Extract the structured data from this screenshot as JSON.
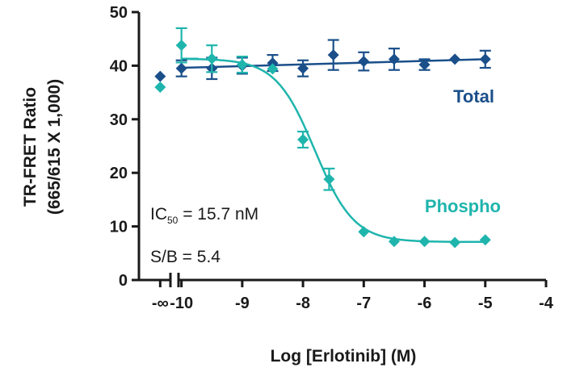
{
  "chart_data": {
    "type": "scatter",
    "xlabel": "Log [Erlotinib] (M)",
    "ylabel_line1": "TR-FRET Ratio",
    "ylabel_line2": "(665/615 X 1,000)",
    "xlim": [
      -10.7,
      -4
    ],
    "ylim": [
      0,
      50
    ],
    "xticks": [
      {
        "value": -10,
        "label": "-10"
      },
      {
        "value": -9,
        "label": "-9"
      },
      {
        "value": -8,
        "label": "-8"
      },
      {
        "value": -7,
        "label": "-7"
      },
      {
        "value": -6,
        "label": "-6"
      },
      {
        "value": -5,
        "label": "-5"
      },
      {
        "value": -4,
        "label": "-4"
      }
    ],
    "xtick_zero": {
      "value": -10.35,
      "label": "-∞"
    },
    "yticks": [
      0,
      10,
      20,
      30,
      40,
      50
    ],
    "axis_break": true,
    "series": [
      {
        "name": "Total",
        "color": "#1a4f8a",
        "zero_dose": {
          "y": 38.0,
          "err": 0
        },
        "points": [
          {
            "x": -10.0,
            "y": 39.5,
            "err": 1.5
          },
          {
            "x": -9.5,
            "y": 39.5,
            "err": 2.0
          },
          {
            "x": -9.0,
            "y": 40.0,
            "err": 1.5
          },
          {
            "x": -8.5,
            "y": 40.5,
            "err": 1.5
          },
          {
            "x": -8.0,
            "y": 39.5,
            "err": 1.5
          },
          {
            "x": -7.5,
            "y": 42.0,
            "err": 2.8
          },
          {
            "x": -7.0,
            "y": 40.8,
            "err": 1.7
          },
          {
            "x": -6.5,
            "y": 41.2,
            "err": 2.0
          },
          {
            "x": -6.0,
            "y": 40.2,
            "err": 1.0
          },
          {
            "x": -5.5,
            "y": 41.2,
            "err": 0
          },
          {
            "x": -5.0,
            "y": 41.2,
            "err": 1.6
          }
        ],
        "fit": {
          "kind": "linear",
          "x0": -10.0,
          "y0": 39.6,
          "x1": -5.0,
          "y1": 41.2
        }
      },
      {
        "name": "Phospho",
        "color": "#1fb5ad",
        "zero_dose": {
          "y": 36.0,
          "err": 0
        },
        "points": [
          {
            "x": -10.0,
            "y": 43.8,
            "err": 3.2
          },
          {
            "x": -9.5,
            "y": 41.3,
            "err": 2.5
          },
          {
            "x": -9.0,
            "y": 40.2,
            "err": 1.5
          },
          {
            "x": -8.5,
            "y": 39.4,
            "err": 0
          },
          {
            "x": -8.0,
            "y": 26.2,
            "err": 1.5
          },
          {
            "x": -7.57,
            "y": 18.8,
            "err": 2.0
          },
          {
            "x": -7.0,
            "y": 9.0,
            "err": 0
          },
          {
            "x": -6.5,
            "y": 7.2,
            "err": 0
          },
          {
            "x": -6.0,
            "y": 7.2,
            "err": 0
          },
          {
            "x": -5.5,
            "y": 7.0,
            "err": 0
          },
          {
            "x": -5.0,
            "y": 7.5,
            "err": 0
          }
        ],
        "fit": {
          "kind": "sigmoid",
          "top": 41.3,
          "bottom": 7.1,
          "logIC50": -7.804,
          "hill": 1.35,
          "xstart": -10.0,
          "xend": -5.0
        },
        "plateau_dash": {
          "x0": -10.0,
          "x1": -9.72,
          "y": 41.3
        }
      }
    ],
    "annotations": {
      "ic50_prefix": "IC",
      "ic50_sub": "50",
      "ic50_rest": " = 15.7 nM",
      "sb": "S/B = 5.4"
    }
  }
}
